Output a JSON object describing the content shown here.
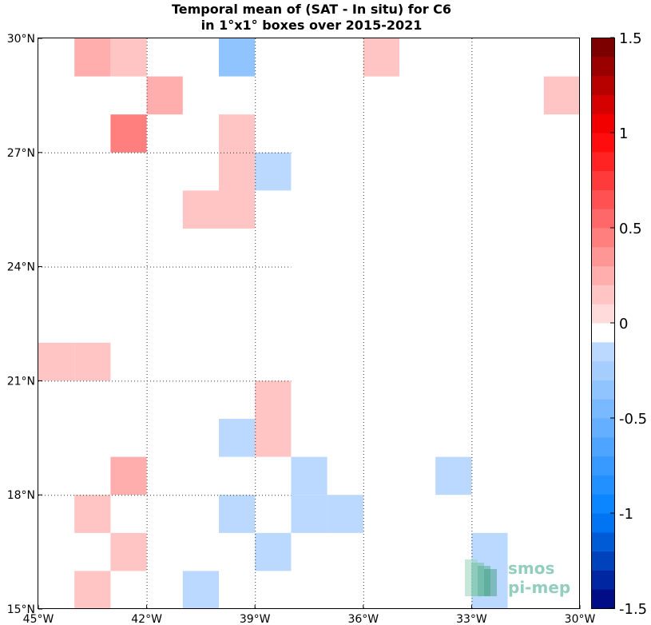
{
  "title_line1": "Temporal mean of (SAT - In situ) for C6",
  "title_line2": "in 1°x1° boxes over 2015-2021",
  "logo": {
    "line1": "smos",
    "line2": "pi-mep"
  },
  "chart_data": {
    "type": "heatmap",
    "title": "Temporal mean of (SAT - In situ) for C6 in 1°x1° boxes over 2015-2021",
    "x_range_lon": [
      -45,
      -30
    ],
    "y_range_lat": [
      15,
      30
    ],
    "x_ticks": [
      {
        "value": -45,
        "label": "45°W"
      },
      {
        "value": -42,
        "label": "42°W"
      },
      {
        "value": -39,
        "label": "39°W"
      },
      {
        "value": -36,
        "label": "36°W"
      },
      {
        "value": -33,
        "label": "33°W"
      },
      {
        "value": -30,
        "label": "30°W"
      }
    ],
    "y_ticks": [
      {
        "value": 30,
        "label": "30°N"
      },
      {
        "value": 27,
        "label": "27°N"
      },
      {
        "value": 24,
        "label": "24°N"
      },
      {
        "value": 21,
        "label": "21°N"
      },
      {
        "value": 18,
        "label": "18°N"
      },
      {
        "value": 15,
        "label": "15°N"
      }
    ],
    "grid": "dotted",
    "colorbar": {
      "range": [
        -1.5,
        1.5
      ],
      "step": 0.1,
      "ticks": [
        {
          "value": 1.5,
          "label": "1.5"
        },
        {
          "value": 1,
          "label": "1"
        },
        {
          "value": 0.5,
          "label": "0.5"
        },
        {
          "value": 0,
          "label": "0"
        },
        {
          "value": -0.5,
          "label": "-0.5"
        },
        {
          "value": -1,
          "label": "-1"
        },
        {
          "value": -1.5,
          "label": "-1.5"
        }
      ]
    },
    "cells": [
      {
        "lon": -44,
        "lat": 29,
        "value": 0.25
      },
      {
        "lon": -43,
        "lat": 29,
        "value": 0.15
      },
      {
        "lon": -40,
        "lat": 29,
        "value": -0.35
      },
      {
        "lon": -36,
        "lat": 29,
        "value": 0.15
      },
      {
        "lon": -42,
        "lat": 28,
        "value": 0.25
      },
      {
        "lon": -31,
        "lat": 28,
        "value": 0.15
      },
      {
        "lon": -43,
        "lat": 27,
        "value": 0.45
      },
      {
        "lon": -40,
        "lat": 27,
        "value": 0.15
      },
      {
        "lon": -40,
        "lat": 26,
        "value": 0.15
      },
      {
        "lon": -39,
        "lat": 26,
        "value": -0.15
      },
      {
        "lon": -41,
        "lat": 25,
        "value": 0.15
      },
      {
        "lon": -40,
        "lat": 25,
        "value": 0.15
      },
      {
        "lon": -45,
        "lat": 21,
        "value": 0.15
      },
      {
        "lon": -44,
        "lat": 21,
        "value": 0.15
      },
      {
        "lon": -39,
        "lat": 20,
        "value": 0.15
      },
      {
        "lon": -40,
        "lat": 19,
        "value": -0.15
      },
      {
        "lon": -39,
        "lat": 19,
        "value": 0.15
      },
      {
        "lon": -43,
        "lat": 18,
        "value": 0.25
      },
      {
        "lon": -38,
        "lat": 18,
        "value": -0.15
      },
      {
        "lon": -34,
        "lat": 18,
        "value": -0.15
      },
      {
        "lon": -44,
        "lat": 17,
        "value": 0.15
      },
      {
        "lon": -40,
        "lat": 17,
        "value": -0.15
      },
      {
        "lon": -38,
        "lat": 17,
        "value": -0.15
      },
      {
        "lon": -37,
        "lat": 17,
        "value": -0.15
      },
      {
        "lon": -43,
        "lat": 16,
        "value": 0.15
      },
      {
        "lon": -39,
        "lat": 16,
        "value": -0.15
      },
      {
        "lon": -33,
        "lat": 16,
        "value": -0.15
      },
      {
        "lon": -44,
        "lat": 15,
        "value": 0.15
      },
      {
        "lon": -41,
        "lat": 15,
        "value": -0.15
      },
      {
        "lon": -33,
        "lat": 15,
        "value": -0.15
      }
    ]
  }
}
